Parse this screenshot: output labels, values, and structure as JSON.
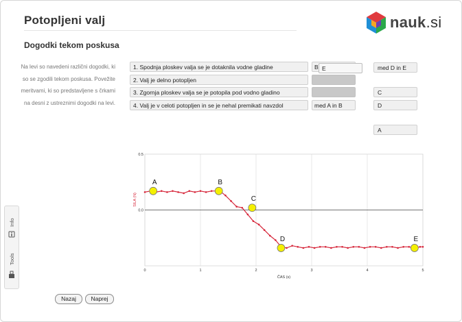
{
  "page": {
    "title": "Potopljeni valj",
    "subtitle": "Dogodki tekom poskusa",
    "instructions": "Na levi so navedeni različni dogodki, ki so se zgodili tekom poskusa. Povežite meritvami, ki so predstavljene s črkami na desni z ustreznimi dogodki na levi."
  },
  "logo": {
    "name": "nauk",
    "suffix": ".si"
  },
  "events": [
    {
      "label": "1. Spodnja ploskev valja se je dotaknila vodne gladine",
      "slot": "B"
    },
    {
      "label": "2. Valj je delno potopljen",
      "slot": ""
    },
    {
      "label": "3. Zgornja ploskev valja se je potopila pod vodno gladino",
      "slot": ""
    },
    {
      "label": "4. Valj je v celoti potopljen in se je nehal premikati navzdol",
      "slot": "med A in B"
    }
  ],
  "dragging": "E",
  "options": [
    "med D in E",
    "C",
    "D",
    "A"
  ],
  "sidebar": {
    "info": "Info",
    "tools": "Tools"
  },
  "buttons": {
    "back": "Nazaj",
    "next": "Naprej"
  },
  "chart_data": {
    "type": "line",
    "xlabel": "ČAS (s)",
    "ylabel": "SILA (N)",
    "xlim": [
      0,
      5
    ],
    "ylim": [
      -0.5,
      0.5
    ],
    "xticks": [
      "0",
      "1",
      "2",
      "3",
      "4",
      "5"
    ],
    "yticks": [
      "0.5",
      "0.0"
    ],
    "color": "#d6263a",
    "series": [
      {
        "x": [
          0,
          0.1,
          0.2,
          0.3,
          0.4,
          0.5,
          0.6,
          0.7,
          0.8,
          0.9,
          1.0,
          1.1,
          1.2,
          1.3,
          1.35,
          1.45,
          1.55,
          1.65,
          1.75,
          1.85,
          1.95,
          2.05,
          2.15,
          2.25,
          2.35,
          2.45,
          2.55,
          2.65,
          2.75,
          2.85,
          2.95,
          3.05,
          3.15,
          3.25,
          3.35,
          3.45,
          3.55,
          3.65,
          3.75,
          3.85,
          3.95,
          4.05,
          4.15,
          4.25,
          4.35,
          4.45,
          4.55,
          4.65,
          4.75,
          4.85,
          4.95,
          5.0
        ],
        "y": [
          0.16,
          0.17,
          0.16,
          0.17,
          0.16,
          0.17,
          0.16,
          0.15,
          0.17,
          0.16,
          0.17,
          0.16,
          0.17,
          0.17,
          0.17,
          0.13,
          0.08,
          0.03,
          0.02,
          -0.04,
          -0.1,
          -0.13,
          -0.18,
          -0.23,
          -0.27,
          -0.33,
          -0.34,
          -0.32,
          -0.33,
          -0.34,
          -0.33,
          -0.34,
          -0.33,
          -0.33,
          -0.34,
          -0.33,
          -0.33,
          -0.34,
          -0.33,
          -0.33,
          -0.34,
          -0.33,
          -0.33,
          -0.34,
          -0.33,
          -0.33,
          -0.34,
          -0.33,
          -0.33,
          -0.34,
          -0.33,
          -0.33
        ]
      }
    ],
    "markers": [
      {
        "label": "A",
        "x": 0.15,
        "y": 0.17
      },
      {
        "label": "B",
        "x": 1.33,
        "y": 0.17
      },
      {
        "label": "C",
        "x": 1.93,
        "y": 0.02
      },
      {
        "label": "D",
        "x": 2.45,
        "y": -0.34
      },
      {
        "label": "E",
        "x": 4.85,
        "y": -0.34
      }
    ]
  }
}
